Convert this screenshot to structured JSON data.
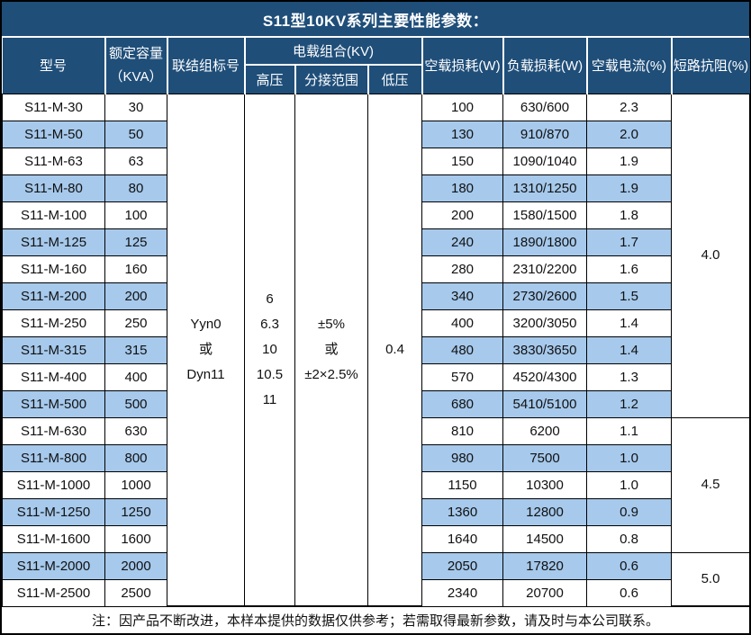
{
  "title": "S11型10KV系列主要性能参数：",
  "columns": {
    "model": "型号",
    "capacity_l1": "额定容量",
    "capacity_l2": "（KVA）",
    "connection": "联结组标号",
    "load_group": "电载组合(KV)",
    "hv": "高压",
    "tap": "分接范围",
    "lv": "低压",
    "no_load_loss": "空载损耗(W)",
    "load_loss": "负载损耗(W)",
    "no_load_current": "空载电流(%)",
    "impedance": "短路抗阻(%)"
  },
  "shared": {
    "connection": "Yyn0\n或\nDyn11",
    "hv": "6\n6.3\n10\n10.5\n11",
    "tap": "±5%\n或\n±2×2.5%",
    "lv": "0.4"
  },
  "rows": [
    {
      "model": "S11-M-30",
      "capacity": "30",
      "no_load_loss": "100",
      "load_loss": "630/600",
      "no_load_current": "2.3"
    },
    {
      "model": "S11-M-50",
      "capacity": "50",
      "no_load_loss": "130",
      "load_loss": "910/870",
      "no_load_current": "2.0"
    },
    {
      "model": "S11-M-63",
      "capacity": "63",
      "no_load_loss": "150",
      "load_loss": "1090/1040",
      "no_load_current": "1.9"
    },
    {
      "model": "S11-M-80",
      "capacity": "80",
      "no_load_loss": "180",
      "load_loss": "1310/1250",
      "no_load_current": "1.9"
    },
    {
      "model": "S11-M-100",
      "capacity": "100",
      "no_load_loss": "200",
      "load_loss": "1580/1500",
      "no_load_current": "1.8"
    },
    {
      "model": "S11-M-125",
      "capacity": "125",
      "no_load_loss": "240",
      "load_loss": "1890/1800",
      "no_load_current": "1.7"
    },
    {
      "model": "S11-M-160",
      "capacity": "160",
      "no_load_loss": "280",
      "load_loss": "2310/2200",
      "no_load_current": "1.6"
    },
    {
      "model": "S11-M-200",
      "capacity": "200",
      "no_load_loss": "340",
      "load_loss": "2730/2600",
      "no_load_current": "1.5"
    },
    {
      "model": "S11-M-250",
      "capacity": "250",
      "no_load_loss": "400",
      "load_loss": "3200/3050",
      "no_load_current": "1.4"
    },
    {
      "model": "S11-M-315",
      "capacity": "315",
      "no_load_loss": "480",
      "load_loss": "3830/3650",
      "no_load_current": "1.4"
    },
    {
      "model": "S11-M-400",
      "capacity": "400",
      "no_load_loss": "570",
      "load_loss": "4520/4300",
      "no_load_current": "1.3"
    },
    {
      "model": "S11-M-500",
      "capacity": "500",
      "no_load_loss": "680",
      "load_loss": "5410/5100",
      "no_load_current": "1.2"
    },
    {
      "model": "S11-M-630",
      "capacity": "630",
      "no_load_loss": "810",
      "load_loss": "6200",
      "no_load_current": "1.1"
    },
    {
      "model": "S11-M-800",
      "capacity": "800",
      "no_load_loss": "980",
      "load_loss": "7500",
      "no_load_current": "1.0"
    },
    {
      "model": "S11-M-1000",
      "capacity": "1000",
      "no_load_loss": "1150",
      "load_loss": "10300",
      "no_load_current": "1.0"
    },
    {
      "model": "S11-M-1250",
      "capacity": "1250",
      "no_load_loss": "1360",
      "load_loss": "12800",
      "no_load_current": "0.9"
    },
    {
      "model": "S11-M-1600",
      "capacity": "1600",
      "no_load_loss": "1640",
      "load_loss": "14500",
      "no_load_current": "0.8"
    },
    {
      "model": "S11-M-2000",
      "capacity": "2000",
      "no_load_loss": "2050",
      "load_loss": "17820",
      "no_load_current": "0.6"
    },
    {
      "model": "S11-M-2500",
      "capacity": "2500",
      "no_load_loss": "2340",
      "load_loss": "20700",
      "no_load_current": "0.6"
    }
  ],
  "impedance_groups": [
    {
      "value": "4.0",
      "span": 12
    },
    {
      "value": "4.5",
      "span": 5
    },
    {
      "value": "5.0",
      "span": 2
    }
  ],
  "note": "注：因产品不断改进，本样本提供的数据仅供参考；若需取得最新参数，请及时与本公司联系。",
  "colors": {
    "header_bg": "#1F4E79",
    "header_text": "#FFFFFF",
    "alt_row_bg": "#A6C9EC",
    "border": "#000000"
  }
}
